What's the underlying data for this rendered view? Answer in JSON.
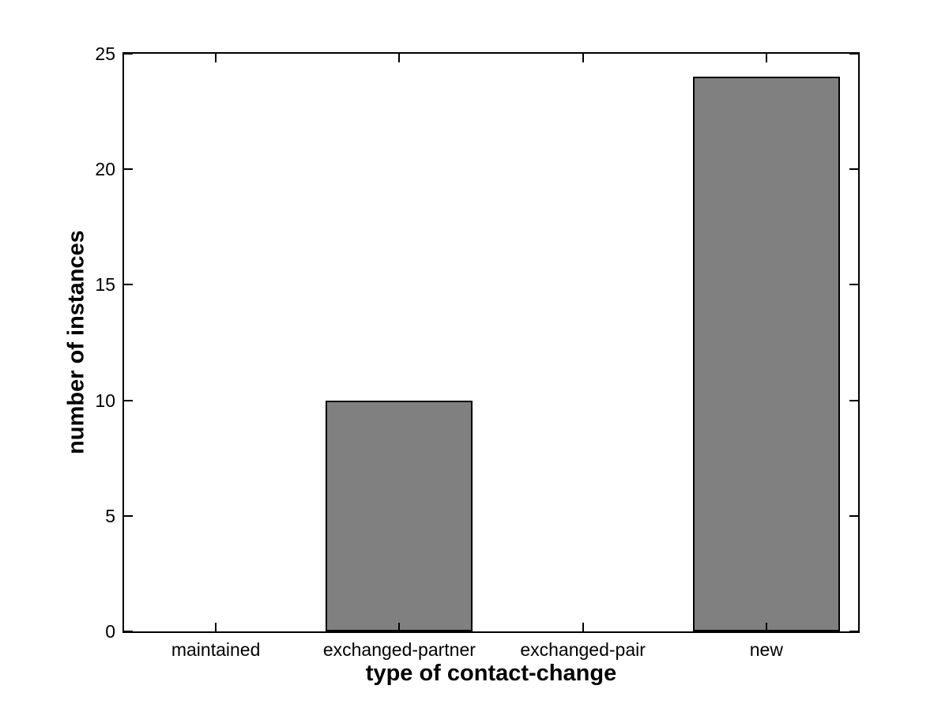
{
  "figure": {
    "background_color": "#ffffff"
  },
  "chart_data": {
    "type": "bar",
    "xlabel": "type of contact-change",
    "ylabel": "number of instances",
    "categories": [
      "maintained",
      "exchanged-partner",
      "exchanged-pair",
      "new"
    ],
    "values": [
      0,
      10,
      0,
      24
    ],
    "ylim": [
      0,
      25
    ],
    "yticks": [
      0,
      5,
      10,
      15,
      20,
      25
    ],
    "bar_width_fraction": 0.8,
    "bar_color": "#808080",
    "bar_edge_color": "#000000",
    "axis_color": "#000000",
    "grid": false,
    "legend": null,
    "tick_direction": "in",
    "box": true
  }
}
